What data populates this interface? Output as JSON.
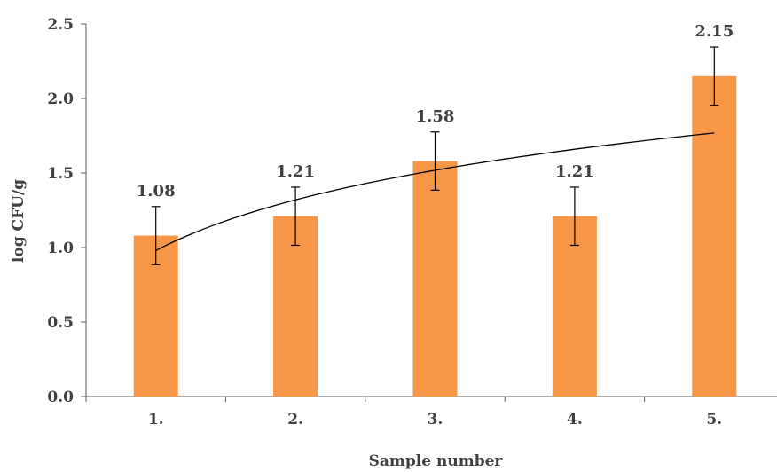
{
  "chart_data": {
    "type": "bar",
    "categories": [
      "1.",
      "2.",
      "3.",
      "4.",
      "5."
    ],
    "values": [
      1.08,
      1.21,
      1.58,
      1.21,
      2.15
    ],
    "data_labels": [
      "1.08",
      "1.21",
      "1.58",
      "1.21",
      "2.15"
    ],
    "error": [
      0.195,
      0.195,
      0.195,
      0.195,
      0.195
    ],
    "trendline": {
      "type": "logarithmic",
      "intercept": 0.98,
      "slope": 0.49
    },
    "title": "",
    "xlabel": "Sample number",
    "ylabel": "log CFU/g",
    "ylim": [
      0,
      2.5
    ],
    "yticks": [
      0.0,
      0.5,
      1.0,
      1.5,
      2.0,
      2.5
    ],
    "ytick_labels": [
      "0.0",
      "0.5",
      "1.0",
      "1.5",
      "2.0",
      "2.5"
    ],
    "grid": false,
    "legend": "none",
    "colors": {
      "bar": "#F79646",
      "axis": "#595959",
      "text": "#404040",
      "trendline": "#000000",
      "error_bar": "#000000"
    }
  }
}
